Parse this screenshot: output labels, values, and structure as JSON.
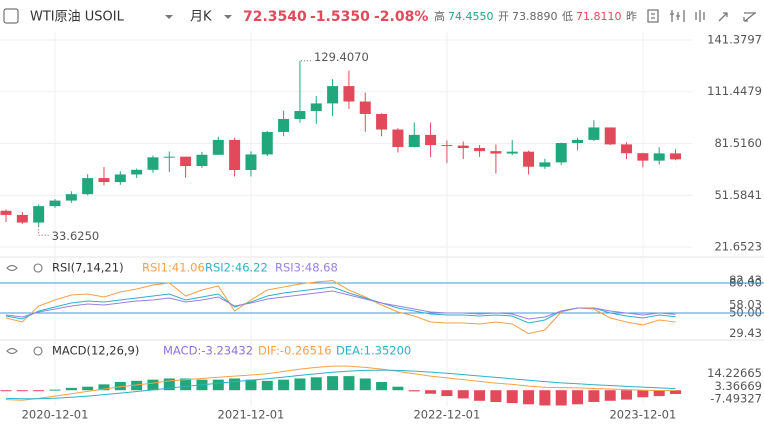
{
  "header": {
    "symbol": "WTI原油 USOIL",
    "period": "月K",
    "price": "72.3540",
    "change": "-1.5350",
    "change_pct": "-2.08%",
    "high_label": "高",
    "high": "74.4550",
    "open_label": "开",
    "open": "73.8890",
    "low_label": "低",
    "low": "71.8110",
    "prev_label": "昨"
  },
  "chart_data": [
    {
      "type": "candlestick",
      "categories": [
        null,
        null,
        null,
        "2020-12-01",
        null,
        null,
        null,
        null,
        null,
        null,
        null,
        null,
        null,
        null,
        null,
        "2021-12-01",
        null,
        null,
        null,
        null,
        null,
        null,
        null,
        null,
        null,
        null,
        null,
        "2022-12-01",
        null,
        null,
        null,
        null,
        null,
        null,
        null,
        null,
        null,
        null,
        null,
        "2023-12-01",
        null,
        null
      ],
      "open": [
        42.6,
        40.2,
        35.8,
        45.3,
        48.5,
        52.2,
        61.5,
        59.2,
        63.6,
        66.3,
        73.5,
        73.9,
        68.5,
        75.0,
        83.6,
        66.2,
        75.2,
        88.2,
        95.7,
        100.3,
        104.7,
        114.7,
        105.8,
        98.6,
        89.6,
        79.5,
        86.5,
        80.6,
        80.3,
        78.9,
        77.1,
        75.7,
        76.8,
        68.1,
        70.6,
        81.8,
        83.6,
        90.8,
        81.0,
        75.9,
        71.6,
        75.8
      ],
      "high": [
        43.4,
        41.9,
        46.3,
        49.4,
        53.9,
        63.8,
        67.9,
        65.5,
        67.0,
        74.5,
        76.9,
        74.0,
        76.7,
        85.4,
        84.9,
        77.0,
        88.8,
        100.5,
        129.407,
        109.0,
        118.7,
        123.7,
        111.0,
        99.0,
        90.4,
        93.6,
        93.7,
        83.3,
        82.7,
        80.6,
        81.0,
        83.5,
        77.4,
        72.7,
        82.0,
        84.9,
        95.0,
        90.8,
        82.2,
        76.2,
        79.3,
        78.2
      ],
      "low": [
        36.1,
        35.0,
        33.625,
        44.3,
        47.2,
        51.5,
        57.3,
        57.6,
        61.6,
        64.6,
        65.0,
        61.7,
        67.4,
        74.9,
        62.4,
        62.4,
        74.3,
        85.7,
        93.5,
        92.9,
        97.3,
        101.5,
        88.3,
        85.7,
        76.3,
        79.3,
        73.6,
        70.1,
        72.5,
        73.8,
        64.1,
        74.9,
        63.6,
        66.8,
        69.0,
        77.6,
        83.0,
        80.6,
        72.4,
        67.7,
        69.3,
        71.8
      ],
      "close": [
        40.2,
        35.8,
        45.3,
        48.5,
        52.2,
        61.5,
        59.2,
        63.6,
        66.3,
        73.5,
        73.9,
        68.5,
        75.0,
        83.6,
        66.2,
        75.2,
        88.2,
        95.7,
        100.3,
        104.7,
        114.7,
        105.8,
        98.6,
        89.6,
        79.5,
        86.5,
        80.6,
        80.3,
        78.9,
        77.1,
        75.7,
        76.8,
        68.1,
        70.6,
        81.8,
        83.6,
        90.8,
        81.0,
        75.9,
        71.6,
        75.8,
        72.354
      ],
      "high_labels": [
        null,
        null,
        null,
        null,
        null,
        null,
        null,
        null,
        null,
        null,
        null,
        null,
        null,
        null,
        null,
        null,
        null,
        null,
        "129.4070",
        null,
        null,
        null,
        null,
        null,
        null,
        null,
        null,
        null,
        null,
        null,
        null,
        null,
        null,
        null,
        null,
        null,
        null,
        null,
        null,
        null,
        null,
        null
      ],
      "low_labels": [
        null,
        null,
        "33.6250",
        null,
        null,
        null,
        null,
        null,
        null,
        null,
        null,
        null,
        null,
        null,
        null,
        null,
        null,
        null,
        null,
        null,
        null,
        null,
        null,
        null,
        null,
        null,
        null,
        null,
        null,
        null,
        null,
        null,
        null,
        null,
        null,
        null,
        null,
        null,
        null,
        null,
        null,
        null
      ],
      "up_color": "#20a77b",
      "down_color": "#e2495a",
      "ylim": [
        21.6523,
        141.3797
      ],
      "yticks": [
        141.3797,
        111.4479,
        {
          "value": 81.516,
          "label": "81.5160"
        },
        51.5841,
        21.6523
      ],
      "grid": true
    },
    {
      "type": "line",
      "title": "RSI(7,14,21)",
      "series": [
        {
          "name": "RSI1:41.06",
          "color": "#f5a04a",
          "values": [
            45,
            41,
            57,
            63,
            68,
            69,
            66,
            71,
            74,
            78,
            80,
            67,
            73,
            77,
            52,
            63,
            73,
            76,
            79,
            81,
            82.43,
            73,
            66,
            58,
            51,
            47,
            41,
            40,
            40,
            39,
            41,
            39,
            29.43,
            33,
            51,
            55,
            54,
            45,
            41,
            38,
            43,
            41.06
          ]
        },
        {
          "name": "RSI2:46.22",
          "color": "#2fb1c8",
          "values": [
            47,
            44,
            52,
            56,
            60,
            62,
            61,
            63,
            65,
            67,
            69,
            63,
            66,
            69,
            56,
            61,
            67,
            70,
            72,
            74,
            76,
            70,
            65,
            60,
            55,
            52,
            49,
            48,
            48,
            47,
            48,
            47,
            40,
            43,
            52,
            55,
            55,
            50,
            47,
            45,
            48,
            46.22
          ]
        },
        {
          "name": "RSI3:48.68",
          "color": "#9a80e0",
          "values": [
            48,
            46,
            51,
            54,
            57,
            59,
            58,
            60,
            62,
            63,
            65,
            61,
            63,
            66,
            57,
            60,
            64,
            66,
            68,
            70,
            72,
            68,
            64,
            60,
            57,
            54,
            51,
            50,
            50,
            49,
            50,
            49,
            44,
            46,
            52,
            55,
            55,
            52,
            50,
            48,
            50,
            48.68
          ]
        }
      ],
      "ylim": [
        25,
        88
      ],
      "yticks": [
        {
          "value": 80,
          "label": "80.00"
        },
        82.43,
        58.03,
        {
          "value": 50,
          "label": "50.00"
        },
        29.43
      ],
      "reference_lines": [
        80,
        50
      ],
      "reference_color": "#3a9fd8"
    },
    {
      "type": "macd",
      "title": "MACD(12,26,9)",
      "series": [
        {
          "name": "MACD:-3.23432",
          "color": "#8e6fd8",
          "up_color": "#20a77b",
          "down_color": "#e2495a",
          "values": [
            -0.5,
            -0.8,
            -0.6,
            0.5,
            2,
            3,
            5,
            7,
            8,
            9,
            10,
            10,
            9,
            9,
            10,
            9,
            8,
            9,
            10,
            11,
            12,
            12,
            10,
            7,
            3,
            -1,
            -3,
            -5,
            -7,
            -9,
            -10,
            -11,
            -12,
            -13,
            -13,
            -12,
            -10,
            -9,
            -8,
            -6,
            -5,
            -3.23432
          ]
        },
        {
          "name": "DIF:-0.26516",
          "color": "#f5a04a",
          "values": [
            -8,
            -8.5,
            -7,
            -5,
            -3,
            -1,
            1,
            3,
            4.5,
            6,
            8,
            9,
            10,
            11,
            12,
            13,
            14,
            16,
            18,
            19.5,
            20.5,
            20.5,
            19.5,
            18,
            16,
            14,
            12,
            10.5,
            9,
            7.5,
            6,
            5,
            3.5,
            2.5,
            2.2,
            2,
            1.5,
            1,
            0.5,
            0,
            -0.2,
            -0.26516
          ]
        },
        {
          "name": "DEA:1.35200",
          "color": "#2fb1c8",
          "values": [
            -7,
            -7.3,
            -7.3,
            -6.8,
            -6,
            -5,
            -3.8,
            -2.5,
            -1.1,
            0.3,
            1.8,
            3.3,
            4.6,
            6,
            7.3,
            8.6,
            9.8,
            11.2,
            12.6,
            14,
            15.3,
            16.3,
            16.9,
            17.1,
            16.9,
            16.3,
            15.4,
            14.4,
            13.3,
            12.1,
            10.9,
            9.7,
            8.5,
            7.3,
            6.3,
            5.5,
            4.7,
            4,
            3.3,
            2.6,
            2,
            1.352
          ]
        }
      ],
      "ylim": [
        -16,
        30
      ],
      "yticks": [
        14.22665,
        3.36669,
        -7.49327
      ]
    }
  ]
}
